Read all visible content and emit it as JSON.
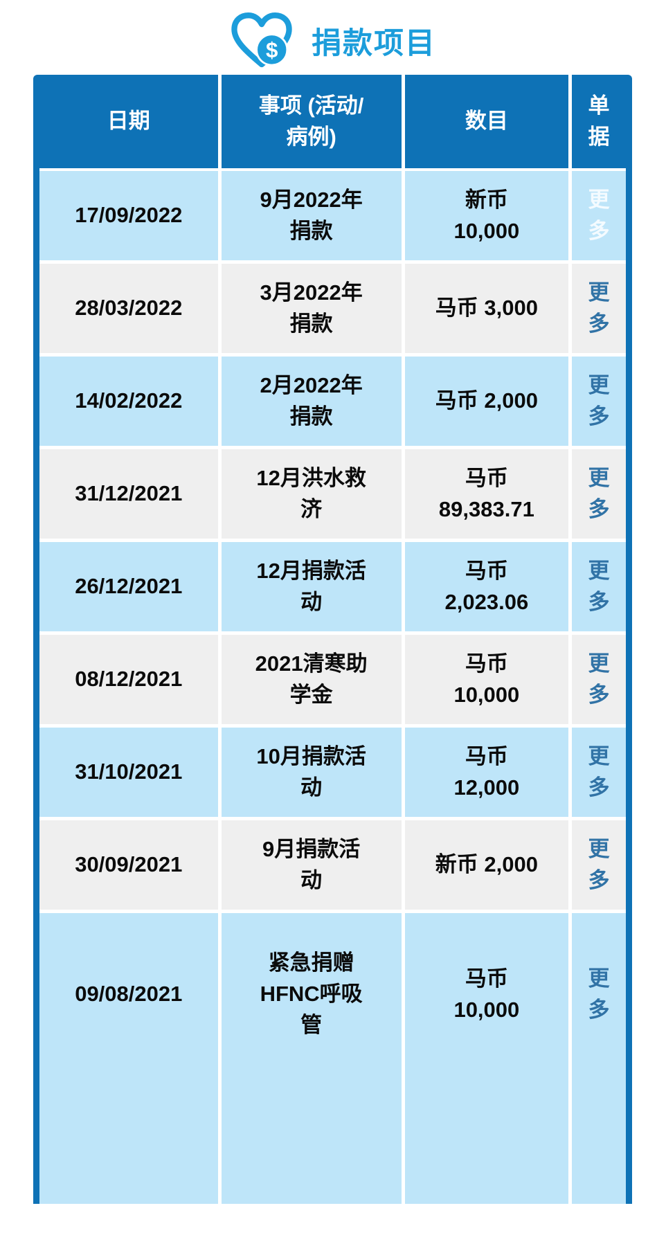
{
  "colors": {
    "accent": "#1C9DDB",
    "header_bg": "#0E72B6",
    "row_blue": "#BEE5F9",
    "row_gray": "#EFEFEF",
    "link_blue": "#3173A6",
    "link_white": "#F4FBFF",
    "text": "#0B0B0B"
  },
  "header": {
    "icon": "heart-dollar-icon",
    "icon_symbol": "$",
    "title": "捐款项目"
  },
  "table": {
    "columns": {
      "date": "日期",
      "item": "事项 (活动/\n病例)",
      "amount": "数目",
      "receipt": "单\n据"
    },
    "rows": [
      {
        "date": "17/09/2022",
        "item": "9月2022年\n捐款",
        "amount": "新币\n10,000",
        "more": "更\n多",
        "more_style": "white"
      },
      {
        "date": "28/03/2022",
        "item": "3月2022年\n捐款",
        "amount": "马币 3,000",
        "more": "更\n多",
        "more_style": "blue"
      },
      {
        "date": "14/02/2022",
        "item": "2月2022年\n捐款",
        "amount": "马币 2,000",
        "more": "更\n多",
        "more_style": "blue"
      },
      {
        "date": "31/12/2021",
        "item": "12月洪水救\n济",
        "amount": "马币\n89,383.71",
        "more": "更\n多",
        "more_style": "blue"
      },
      {
        "date": "26/12/2021",
        "item": "12月捐款活\n动",
        "amount": "马币\n2,023.06",
        "more": "更\n多",
        "more_style": "blue"
      },
      {
        "date": "08/12/2021",
        "item": "2021清寒助\n学金",
        "amount": "马币\n10,000",
        "more": "更\n多",
        "more_style": "blue"
      },
      {
        "date": "31/10/2021",
        "item": "10月捐款活\n动",
        "amount": "马币\n12,000",
        "more": "更\n多",
        "more_style": "blue"
      },
      {
        "date": "30/09/2021",
        "item": "9月捐款活\n动",
        "amount": "新币 2,000",
        "more": "更\n多",
        "more_style": "blue"
      },
      {
        "date": "09/08/2021",
        "item": "紧急捐赠\nHFNC呼吸\n管",
        "amount": "马币\n10,000",
        "more": "更\n多",
        "more_style": "blue"
      }
    ]
  }
}
